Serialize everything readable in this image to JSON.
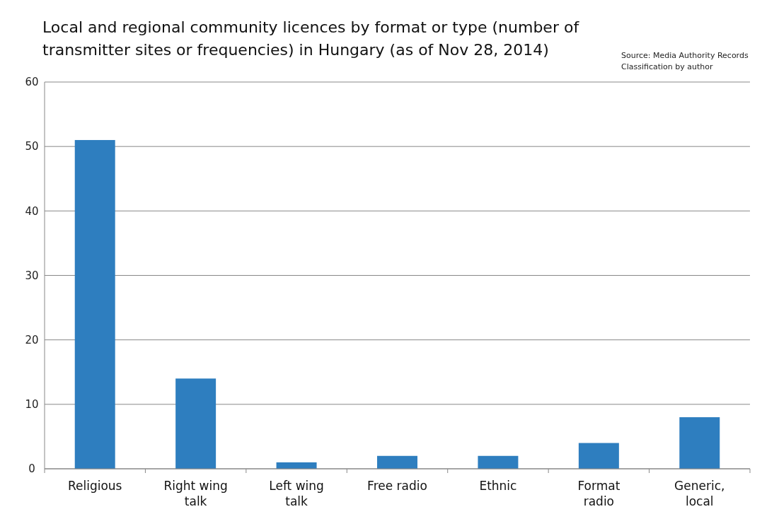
{
  "chart_data": {
    "type": "bar",
    "title": "Local and regional community licences by format or type (number of transmitter sites or frequencies) in Hungary (as of Nov 28, 2014)",
    "annotations": [
      "Source: Media Authority Records",
      "Classification by author"
    ],
    "categories": [
      "Religious",
      "Right wing talk",
      "Left wing talk",
      "Free radio",
      "Ethnic",
      "Format radio",
      "Generic, local"
    ],
    "values": [
      51,
      14,
      1,
      2,
      2,
      4,
      8
    ],
    "color": "#2e7ebf",
    "ylim": [
      0,
      60
    ],
    "yticks": [
      0,
      10,
      20,
      30,
      40,
      50,
      60
    ],
    "grid": "y"
  }
}
